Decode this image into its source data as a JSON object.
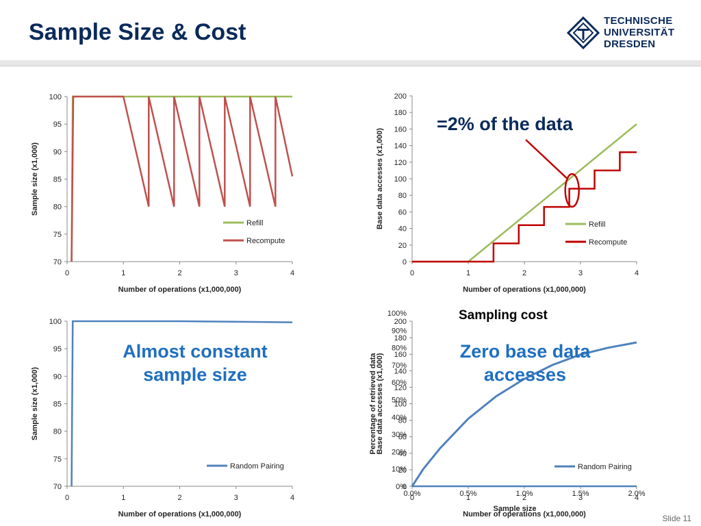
{
  "slide": {
    "title": "Sample Size & Cost",
    "logo_lines": [
      "TECHNISCHE",
      "UNIVERSITÄT",
      "DRESDEN"
    ],
    "footer": "Slide 11"
  },
  "callouts": {
    "top_right": "=2% of the data",
    "bottom_left": "Almost constant\nsample size",
    "bottom_right": "Zero base data\naccesses"
  },
  "chart_data": [
    {
      "type": "line",
      "id": "top-left",
      "xlabel": "Number of operations (x1,000,000)",
      "ylabel": "Sample size (x1,000)",
      "xlim": [
        0,
        4
      ],
      "ylim": [
        70,
        100
      ],
      "xticks": [
        0,
        1,
        2,
        3,
        4
      ],
      "yticks": [
        70,
        75,
        80,
        85,
        90,
        95,
        100
      ],
      "legend": "right",
      "series": [
        {
          "name": "Refill",
          "color": "#9bbb59",
          "x": [
            0.08,
            0.1,
            4.0
          ],
          "y": [
            70,
            100,
            100
          ]
        },
        {
          "name": "Recompute",
          "color": "#c0504d",
          "x": [
            0.08,
            0.11,
            1.0,
            1.45,
            1.45,
            1.9,
            1.9,
            2.35,
            2.35,
            2.8,
            2.8,
            3.25,
            3.25,
            3.7,
            3.7,
            4.0
          ],
          "y": [
            70,
            100,
            100,
            80,
            100,
            80,
            100,
            80,
            100,
            80,
            100,
            80,
            100,
            80,
            100,
            85.5
          ]
        }
      ]
    },
    {
      "type": "line",
      "id": "top-right",
      "xlabel": "Number of operations (x1,000,000)",
      "ylabel": "Base data accesses (x1,000)",
      "xlim": [
        0,
        4
      ],
      "ylim": [
        0,
        200
      ],
      "xticks": [
        0,
        1,
        2,
        3,
        4
      ],
      "yticks": [
        0,
        20,
        40,
        60,
        80,
        100,
        120,
        140,
        160,
        180,
        200
      ],
      "legend": "right",
      "series": [
        {
          "name": "Refill",
          "color": "#9bbb59",
          "x": [
            0,
            1.0,
            4.0
          ],
          "y": [
            0,
            0,
            166
          ]
        },
        {
          "name": "Recompute",
          "color": "#c00000",
          "x": [
            0,
            1.45,
            1.45,
            1.9,
            1.9,
            2.35,
            2.35,
            2.8,
            2.8,
            3.25,
            3.25,
            3.7,
            3.7,
            4.0
          ],
          "y": [
            0,
            0,
            22,
            22,
            44,
            44,
            66,
            66,
            88,
            88,
            110,
            110,
            132,
            132
          ]
        }
      ]
    },
    {
      "type": "line",
      "id": "bottom-left",
      "xlabel": "Number of operations (x1,000,000)",
      "ylabel": "Sample size (x1,000)",
      "xlim": [
        0,
        4
      ],
      "ylim": [
        70,
        100
      ],
      "xticks": [
        0,
        1,
        2,
        3,
        4
      ],
      "yticks": [
        70,
        75,
        80,
        85,
        90,
        95,
        100
      ],
      "legend": "right",
      "series": [
        {
          "name": "Random Pairing",
          "color": "#4f81bd",
          "x": [
            0.08,
            0.1,
            2.0,
            4.0
          ],
          "y": [
            70,
            100,
            100,
            99.8
          ]
        }
      ]
    },
    {
      "type": "line",
      "id": "bottom-right",
      "title": "Sampling cost",
      "xlabel": "Number of operations (x1,000,000)",
      "ylabel": "Base data accesses (x1,000)",
      "xlim": [
        0,
        4
      ],
      "ylim": [
        0,
        200
      ],
      "xticks": [
        0,
        1,
        2,
        3,
        4
      ],
      "yticks": [
        0,
        20,
        40,
        60,
        80,
        100,
        120,
        140,
        160,
        180,
        200
      ],
      "legend": "right",
      "series": [
        {
          "name": "Random Pairing",
          "color": "#4f81bd",
          "x": [
            0,
            4
          ],
          "y": [
            0,
            0
          ]
        }
      ],
      "overlay_axes": {
        "xlabel": "Sample size",
        "ylabel": "Percentage of retrieved data",
        "xticks": [
          "0.0%",
          "0.5%",
          "1.0%",
          "1.5%",
          "2.0%"
        ],
        "yticks": [
          "0%",
          "10%",
          "20%",
          "30%",
          "40%",
          "50%",
          "60%",
          "70%",
          "80%",
          "90%",
          "100%"
        ],
        "xlim": [
          0,
          2.0
        ],
        "ylim": [
          0,
          100
        ],
        "series": {
          "color": "#4f81bd",
          "x": [
            0.0,
            0.1,
            0.25,
            0.5,
            0.75,
            1.0,
            1.25,
            1.5,
            1.75,
            2.0
          ],
          "y": [
            0,
            10,
            22,
            39,
            52,
            62,
            70,
            76,
            80,
            83
          ]
        }
      }
    }
  ]
}
